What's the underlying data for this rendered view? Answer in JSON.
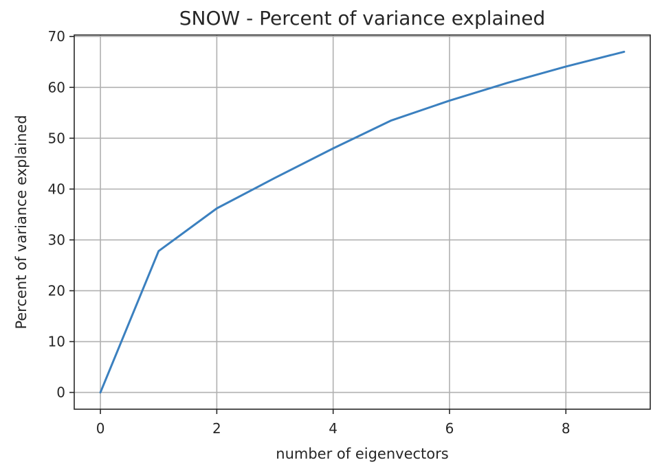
{
  "chart_data": {
    "type": "line",
    "title": "SNOW - Percent of variance explained",
    "xlabel": "number of eigenvectors",
    "ylabel": "Percent of variance explained",
    "xlim": [
      -0.45,
      9.45
    ],
    "ylim": [
      -3.3,
      70.3
    ],
    "xticks": [
      0,
      2,
      4,
      6,
      8
    ],
    "xtick_labels": [
      "0",
      "2",
      "4",
      "6",
      "8"
    ],
    "yticks": [
      0,
      10,
      20,
      30,
      40,
      50,
      60,
      70
    ],
    "ytick_labels": [
      "0",
      "10",
      "20",
      "30",
      "40",
      "50",
      "60",
      "70"
    ],
    "grid": true,
    "series": [
      {
        "color": "#3b80bf",
        "x": [
          0,
          1,
          2,
          3,
          4,
          5,
          6,
          7,
          8,
          9
        ],
        "y": [
          0,
          27.8,
          36.2,
          42.2,
          48.0,
          53.5,
          57.4,
          60.9,
          64.1,
          67.0
        ]
      }
    ]
  }
}
